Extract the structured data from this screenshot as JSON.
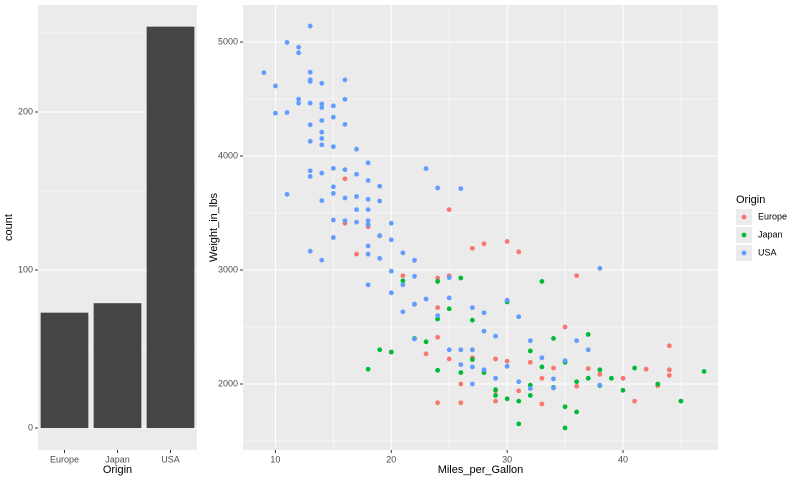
{
  "chart_data": [
    {
      "type": "bar",
      "x_label": "Origin",
      "y_label": "count",
      "categories": [
        "Europe",
        "Japan",
        "USA"
      ],
      "values": [
        73,
        79,
        254
      ],
      "color": "#454545",
      "ylim": [
        -13.9,
        267.7
      ],
      "yticks": [
        0,
        100,
        200
      ],
      "y_minor_ticks": [
        50,
        150,
        250
      ],
      "grid": true
    },
    {
      "type": "scatter",
      "x_label": "Miles_per_Gallon",
      "y_label": "Weight_in_lbs",
      "legend_title": "Origin",
      "legend_position": "right",
      "xlim": [
        7.2,
        48.2
      ],
      "ylim": [
        1421,
        5325
      ],
      "xticks": [
        10,
        20,
        30,
        40
      ],
      "x_minor_ticks": [
        15,
        25,
        35,
        45
      ],
      "yticks": [
        2000,
        3000,
        4000,
        5000
      ],
      "y_minor_ticks": [
        1500,
        2500,
        3500,
        4500
      ],
      "grid": true,
      "series": [
        {
          "name": "Europe",
          "color": "#F8766D",
          "x": [
            16,
            16,
            17,
            18,
            19,
            20,
            21,
            22,
            23,
            24,
            24,
            25,
            25,
            25,
            26,
            26,
            27,
            28,
            29,
            29,
            30,
            30,
            31,
            31,
            32,
            33,
            34,
            35,
            36,
            36,
            37,
            38,
            40,
            41,
            42,
            43,
            44,
            44,
            44,
            26,
            29,
            33,
            27,
            24,
            24
          ],
          "values": [
            3800,
            3410,
            3140,
            3380,
            3300,
            2280,
            2950,
            2700,
            2265,
            2410,
            1835,
            3530,
            2950,
            2220,
            1835,
            2000,
            3190,
            3230,
            1940,
            1850,
            3250,
            2200,
            3160,
            1940,
            2190,
            1825,
            2140,
            2500,
            2950,
            1980,
            2135,
            2085,
            2050,
            1850,
            2130,
            1985,
            2335,
            2125,
            2075,
            2300,
            2220,
            2050,
            2230,
            2930,
            2670
          ]
        },
        {
          "name": "Japan",
          "color": "#00BA38",
          "x": [
            18,
            19,
            20,
            21,
            22,
            23,
            24,
            24,
            25,
            26,
            27,
            27,
            28,
            29,
            30,
            31,
            31,
            32,
            32,
            33,
            33,
            34,
            35,
            35,
            35,
            36,
            36,
            37,
            37,
            38,
            38,
            39,
            40,
            41,
            43,
            45,
            47,
            24,
            22,
            29,
            30,
            32,
            34,
            26
          ],
          "values": [
            2130,
            2300,
            2280,
            2905,
            2700,
            2370,
            2570,
            2120,
            2660,
            2930,
            2560,
            2215,
            2100,
            1950,
            2720,
            1850,
            1650,
            2290,
            1990,
            2900,
            2150,
            1970,
            2190,
            1800,
            1615,
            2020,
            1755,
            2435,
            2050,
            1985,
            2125,
            2050,
            1945,
            2140,
            2000,
            1850,
            2110,
            2900,
            2400,
            1900,
            1870,
            1900,
            2400,
            2100
          ]
        },
        {
          "name": "USA",
          "color": "#619CFF",
          "x": [
            9,
            10,
            10,
            11,
            11,
            11,
            12,
            12,
            12,
            12,
            13,
            13,
            13,
            13,
            13,
            13,
            13,
            13,
            13,
            13,
            14,
            14,
            14,
            14,
            14,
            14,
            14,
            14,
            14,
            14,
            15,
            15,
            15,
            15,
            15,
            15,
            15,
            15,
            16,
            16,
            16,
            16,
            16,
            16,
            17,
            17,
            17,
            17,
            17,
            18,
            18,
            18,
            18,
            18,
            18,
            18,
            18,
            18,
            19,
            19,
            19,
            19,
            20,
            20,
            20,
            20,
            21,
            21,
            21,
            22,
            22,
            22,
            22,
            23,
            23,
            24,
            24,
            25,
            25,
            25,
            26,
            26,
            26,
            27,
            27,
            27,
            28,
            28,
            28,
            29,
            29,
            30,
            30,
            31,
            31,
            32,
            33,
            34,
            35,
            36,
            37,
            38,
            38,
            34,
            27,
            32
          ],
          "values": [
            4732,
            4615,
            4376,
            4997,
            4382,
            3664,
            4955,
            4906,
            4499,
            4464,
            5140,
            4735,
            4668,
            4654,
            4464,
            4274,
            4129,
            3870,
            3821,
            3165,
            4638,
            4457,
            4425,
            4312,
            4209,
            4154,
            4098,
            3850,
            3609,
            3086,
            4440,
            4341,
            4082,
            3892,
            3730,
            3672,
            3439,
            3285,
            4668,
            4498,
            4278,
            3880,
            3632,
            3433,
            4060,
            3840,
            3645,
            3530,
            3420,
            3940,
            3785,
            3620,
            3530,
            3432,
            3399,
            3211,
            3139,
            2870,
            3735,
            3605,
            3302,
            3102,
            3410,
            3265,
            2990,
            2800,
            3150,
            2870,
            2634,
            3085,
            2945,
            2700,
            2395,
            3890,
            2745,
            3720,
            2600,
            2933,
            2755,
            2300,
            3714,
            2300,
            2170,
            2670,
            2300,
            2150,
            2625,
            2464,
            2125,
            2420,
            2050,
            2735,
            2155,
            2590,
            2020,
            2380,
            2230,
            2045,
            2205,
            2380,
            2300,
            3015,
            1990,
            1965,
            2000,
            1960
          ]
        }
      ]
    }
  ]
}
